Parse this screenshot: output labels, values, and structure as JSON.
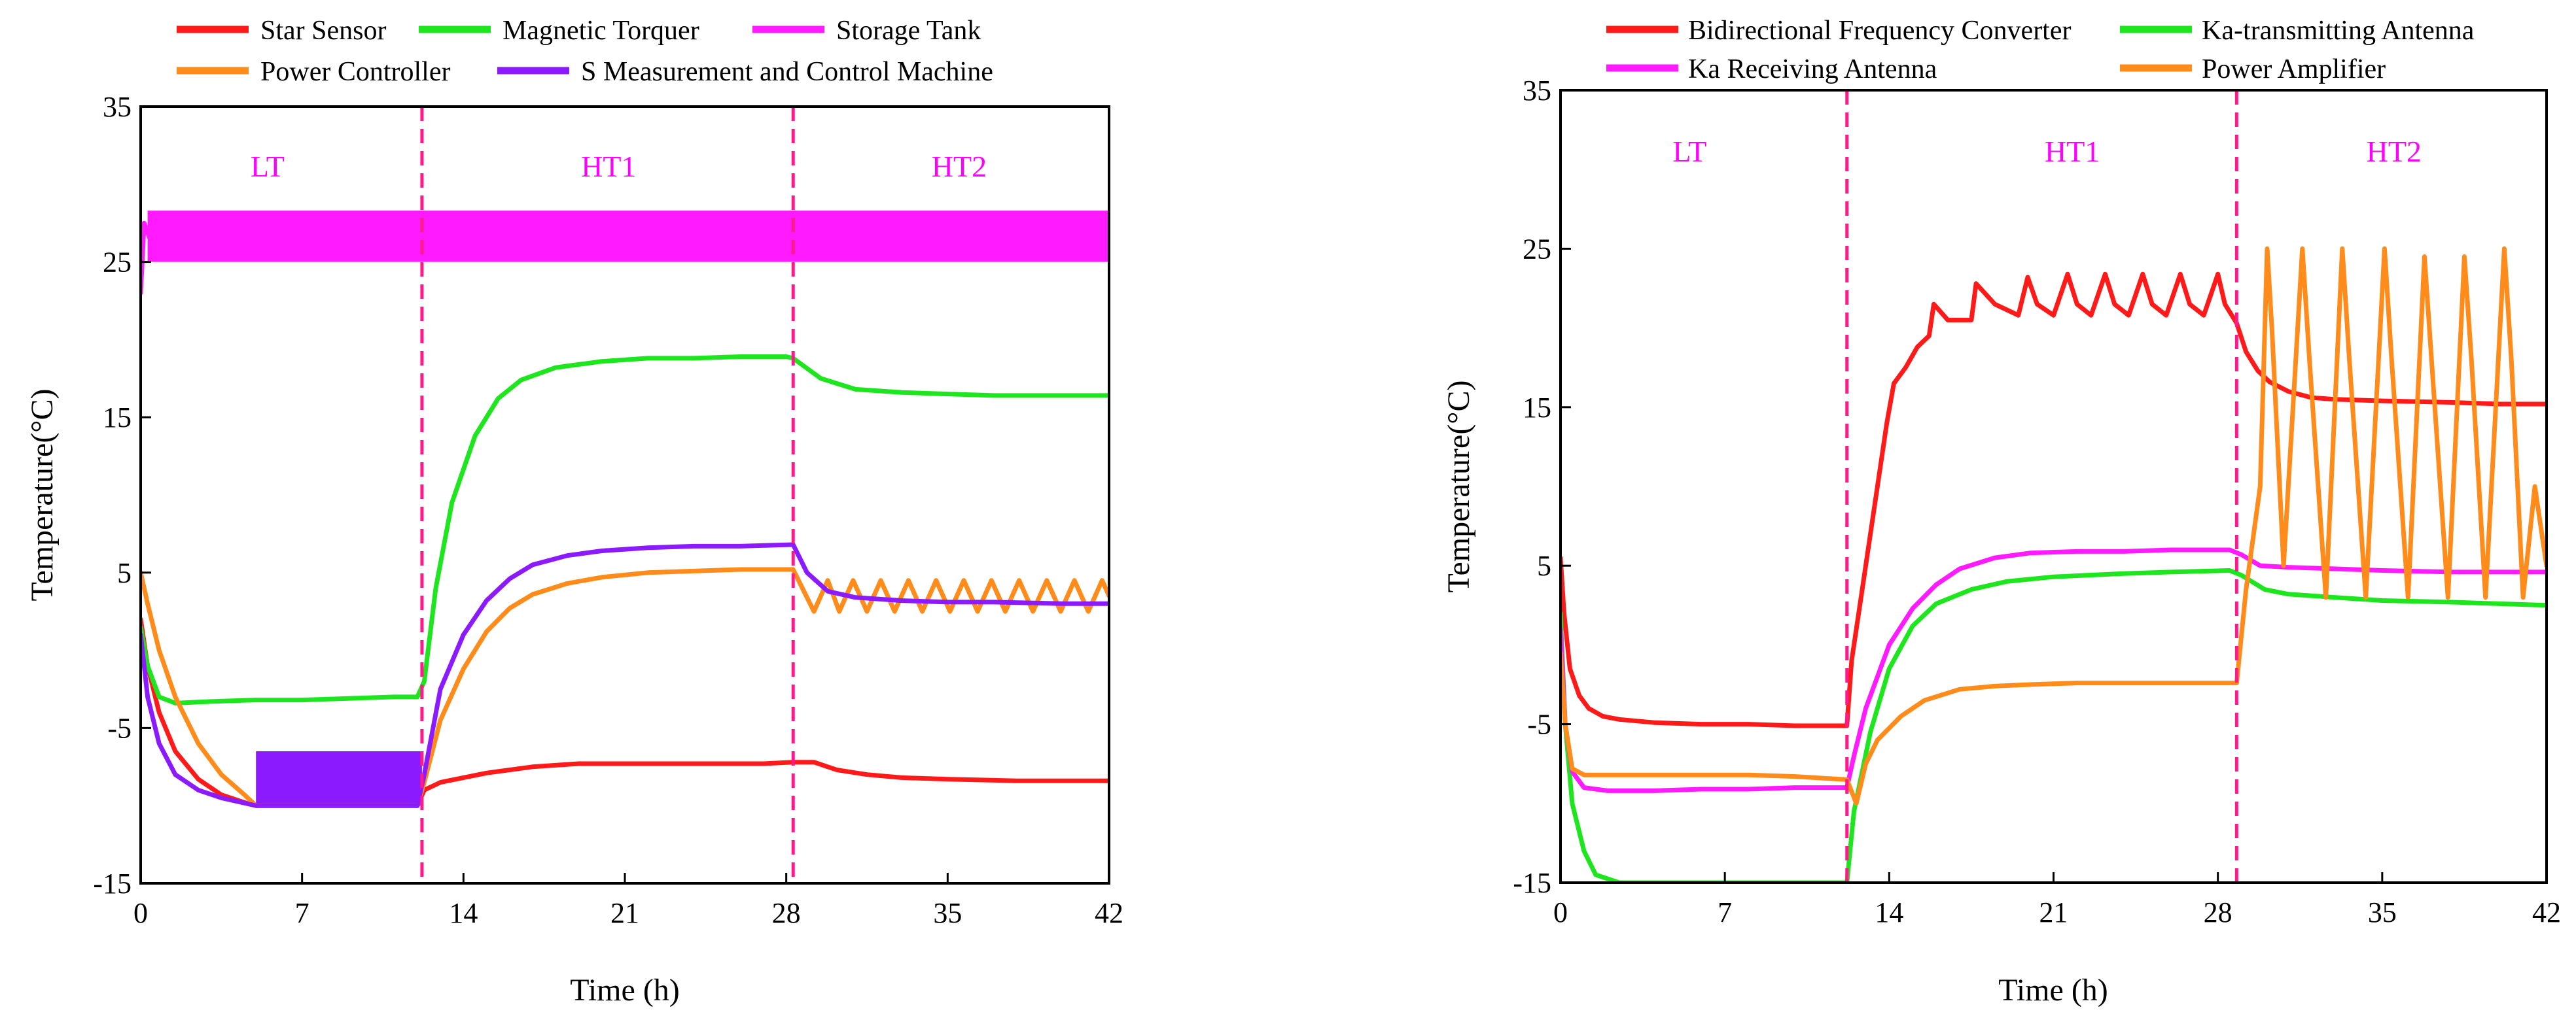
{
  "chart_data": [
    {
      "type": "line",
      "xlabel": "Time (h)",
      "ylabel": "Temperature(°C)",
      "xlim": [
        0,
        42
      ],
      "ylim": [
        -15,
        35
      ],
      "xticks": [
        0,
        7,
        14,
        21,
        28,
        35,
        42
      ],
      "yticks": [
        -15,
        -5,
        5,
        15,
        25,
        35
      ],
      "phase_lines": [
        12.2,
        28.3
      ],
      "phase_labels": [
        {
          "text": "LT",
          "x": 5.5,
          "y": 30.5
        },
        {
          "text": "HT1",
          "x": 20.3,
          "y": 30.5
        },
        {
          "text": "HT2",
          "x": 35.5,
          "y": 30.5
        }
      ],
      "series": [
        {
          "name": "Star Sensor",
          "color": "#ff1a1a",
          "x": [
            0,
            0.3,
            0.8,
            1.5,
            2.5,
            3.5,
            4.5,
            5,
            7,
            9,
            11,
            12,
            12.3,
            13,
            15,
            17,
            19,
            21,
            23,
            25,
            27,
            28.3,
            29.2,
            30.2,
            31.5,
            33,
            35,
            38,
            40,
            42
          ],
          "y": [
            2,
            -1,
            -4,
            -6.5,
            -8.3,
            -9.3,
            -9.8,
            -10,
            -10,
            -10,
            -10,
            -10,
            -9,
            -8.5,
            -7.9,
            -7.5,
            -7.3,
            -7.3,
            -7.3,
            -7.3,
            -7.3,
            -7.2,
            -7.2,
            -7.7,
            -8,
            -8.2,
            -8.3,
            -8.4,
            -8.4,
            -8.4
          ]
        },
        {
          "name": "Magnetic Torquer",
          "color": "#1ee61e",
          "x": [
            0,
            0.3,
            0.8,
            1.5,
            3,
            5,
            7,
            9,
            11,
            12,
            12.3,
            12.8,
            13.5,
            14.5,
            15.5,
            16.5,
            18,
            20,
            22,
            24,
            26,
            28,
            28.3,
            29.5,
            31,
            33,
            35,
            37,
            40,
            42
          ],
          "y": [
            1.5,
            -1,
            -3,
            -3.4,
            -3.3,
            -3.2,
            -3.2,
            -3.1,
            -3,
            -3,
            -2,
            4,
            9.5,
            13.8,
            16.2,
            17.4,
            18.2,
            18.6,
            18.8,
            18.8,
            18.9,
            18.9,
            18.8,
            17.5,
            16.8,
            16.6,
            16.5,
            16.4,
            16.4,
            16.4
          ]
        },
        {
          "name": "Storage Tank",
          "color": "#ff1aff",
          "x": [
            0,
            0.15,
            0.4,
            42
          ],
          "y": [
            23,
            27.5,
            26.5,
            26.5
          ],
          "band": [
            25,
            28.3
          ]
        },
        {
          "name": "Power Controller",
          "color": "#ff8c1a",
          "x": [
            0,
            0.3,
            0.8,
            1.5,
            2.5,
            3.5,
            4.5,
            5,
            7,
            9,
            11,
            12,
            12.3,
            13,
            14,
            15,
            16,
            17,
            18.5,
            20,
            22,
            24,
            26,
            28.3,
            28.7,
            29.2,
            29.8,
            30.3,
            30.9,
            31.5,
            32.1,
            32.7,
            33.3,
            33.9,
            34.5,
            35.1,
            35.7,
            36.3,
            36.9,
            37.5,
            38.1,
            38.7,
            39.3,
            39.9,
            40.5,
            41.1,
            41.7,
            42
          ],
          "y": [
            5,
            3,
            0,
            -3,
            -6,
            -8,
            -9.3,
            -10,
            -10,
            -10,
            -10,
            -10,
            -8.5,
            -4.5,
            -1.2,
            1.2,
            2.7,
            3.6,
            4.3,
            4.7,
            5,
            5.1,
            5.2,
            5.2,
            4,
            2.5,
            4.5,
            2.5,
            4.5,
            2.5,
            4.5,
            2.5,
            4.5,
            2.5,
            4.5,
            2.5,
            4.5,
            2.5,
            4.5,
            2.5,
            4.5,
            2.5,
            4.5,
            2.5,
            4.5,
            2.5,
            4.5,
            3.5
          ]
        },
        {
          "name": "S Measurement and Control Machine",
          "color": "#8c1aff",
          "x": [
            0,
            0.3,
            0.8,
            1.5,
            2.5,
            3.5,
            5,
            7,
            9,
            11,
            12,
            12.3,
            13,
            14,
            15,
            16,
            17,
            18.5,
            20,
            22,
            24,
            26,
            28.3,
            28.9,
            29.8,
            31,
            33,
            35,
            37,
            40,
            42
          ],
          "y": [
            1,
            -3,
            -6,
            -8,
            -9,
            -9.5,
            -10,
            -10,
            -10,
            -10,
            -10,
            -8,
            -2.5,
            1,
            3.2,
            4.6,
            5.5,
            6.1,
            6.4,
            6.6,
            6.7,
            6.7,
            6.8,
            5,
            3.8,
            3.4,
            3.2,
            3.1,
            3.1,
            3,
            3
          ],
          "band_x": [
            5,
            12.2
          ],
          "band_y": [
            -10,
            -6.5
          ]
        }
      ]
    },
    {
      "type": "line",
      "xlabel": "Time (h)",
      "ylabel": "Temperature(°C)",
      "xlim": [
        0,
        42
      ],
      "ylim": [
        -15,
        35
      ],
      "xticks": [
        0,
        7,
        14,
        21,
        28,
        35,
        42
      ],
      "yticks": [
        -15,
        -5,
        5,
        15,
        25,
        35
      ],
      "phase_lines": [
        12.2,
        28.8
      ],
      "phase_labels": [
        {
          "text": "LT",
          "x": 5.5,
          "y": 30.5
        },
        {
          "text": "HT1",
          "x": 21.8,
          "y": 30.5
        },
        {
          "text": "HT2",
          "x": 35.5,
          "y": 30.5
        }
      ],
      "series": [
        {
          "name": "Bidirectional Frequency Converter",
          "color": "#ff1a1a",
          "x": [
            0,
            0.15,
            0.4,
            0.8,
            1.2,
            1.8,
            2.5,
            4,
            6,
            8,
            10,
            12.2,
            12.4,
            12.8,
            13.3,
            13.9,
            14.2,
            14.7,
            15.2,
            15.7,
            15.9,
            16.5,
            17,
            17.5,
            17.7,
            18.5,
            19.5,
            19.9,
            20.3,
            21,
            21.6,
            22,
            22.6,
            23.2,
            23.6,
            24.2,
            24.8,
            25.2,
            25.8,
            26.4,
            26.8,
            27.4,
            28,
            28.3,
            28.8,
            29.2,
            29.7,
            30.2,
            31,
            32,
            33,
            35,
            38,
            40,
            42
          ],
          "y": [
            5.5,
            2,
            -1.5,
            -3.2,
            -4,
            -4.5,
            -4.7,
            -4.9,
            -5,
            -5,
            -5.1,
            -5.1,
            -1,
            3,
            8,
            14,
            16.5,
            17.5,
            18.8,
            19.5,
            21.5,
            20.5,
            20.5,
            20.5,
            22.8,
            21.5,
            20.8,
            23.2,
            21.5,
            20.8,
            23.4,
            21.5,
            20.8,
            23.4,
            21.5,
            20.8,
            23.4,
            21.5,
            20.8,
            23.4,
            21.5,
            20.8,
            23.4,
            21.5,
            20.3,
            18.5,
            17.3,
            16.6,
            16,
            15.6,
            15.5,
            15.4,
            15.3,
            15.2,
            15.2
          ]
        },
        {
          "name": "Ka-transmitting Antenna",
          "color": "#1ee61e",
          "x": [
            0,
            0.2,
            0.5,
            1,
            1.5,
            2.5,
            4,
            6,
            9,
            12.2,
            12.5,
            13.2,
            14,
            15,
            16,
            17.5,
            19,
            21,
            24,
            26,
            28.5,
            29,
            30,
            31,
            33,
            35,
            38,
            40,
            42
          ],
          "y": [
            2,
            -5,
            -10,
            -13,
            -14.5,
            -15,
            -15,
            -15,
            -15,
            -15,
            -10.5,
            -5.5,
            -1.5,
            1.2,
            2.6,
            3.5,
            4,
            4.3,
            4.5,
            4.6,
            4.7,
            4.4,
            3.5,
            3.2,
            3,
            2.8,
            2.7,
            2.6,
            2.5
          ]
        },
        {
          "name": "Ka Receiving Antenna",
          "color": "#ff1aff",
          "x": [
            0,
            0.2,
            0.5,
            1,
            2,
            4,
            6,
            8,
            10,
            12.2,
            12.5,
            13,
            14,
            15,
            16,
            17,
            18.5,
            20,
            22,
            24,
            26,
            28.5,
            29,
            29.8,
            31,
            33,
            35,
            38,
            40,
            42
          ],
          "y": [
            1,
            -5,
            -8,
            -9,
            -9.2,
            -9.2,
            -9.1,
            -9.1,
            -9,
            -9,
            -7,
            -4,
            0,
            2.3,
            3.8,
            4.8,
            5.5,
            5.8,
            5.9,
            5.9,
            6,
            6,
            5.7,
            5,
            4.9,
            4.8,
            4.7,
            4.6,
            4.6,
            4.6
          ]
        },
        {
          "name": "Power Amplifier",
          "color": "#ff8c1a",
          "x": [
            0,
            0.2,
            0.5,
            1,
            2,
            4,
            6,
            8,
            10,
            12.2,
            12.6,
            13,
            13.5,
            14.5,
            15.5,
            17,
            18.5,
            20,
            22,
            24,
            26,
            28.8,
            29.2,
            29.8,
            30.1,
            30.3,
            30.8,
            31.6,
            31.9,
            32.6,
            33.3,
            33.6,
            34.3,
            35.1,
            35.4,
            36.1,
            36.8,
            37.1,
            37.8,
            38.5,
            38.8,
            39.4,
            40.2,
            40.5,
            41,
            41.5,
            42
          ],
          "y": [
            -0.5,
            -5,
            -7.8,
            -8.2,
            -8.2,
            -8.2,
            -8.2,
            -8.2,
            -8.3,
            -8.5,
            -10,
            -7.5,
            -6,
            -4.5,
            -3.5,
            -2.8,
            -2.6,
            -2.5,
            -2.4,
            -2.4,
            -2.4,
            -2.4,
            3.5,
            10,
            25,
            20,
            5,
            25,
            18,
            3,
            25,
            18,
            3,
            25,
            18,
            3,
            24.5,
            18,
            3,
            24.5,
            18,
            3,
            25,
            18,
            3,
            10,
            5
          ]
        }
      ]
    }
  ],
  "legends": [
    [
      "Star Sensor",
      "Magnetic Torquer",
      "Storage Tank",
      "Power Controller",
      "S Measurement and Control Machine"
    ],
    [
      "Bidirectional Frequency Converter",
      "Ka-transmitting Antenna",
      "Ka Receiving Antenna",
      "Power Amplifier"
    ]
  ]
}
